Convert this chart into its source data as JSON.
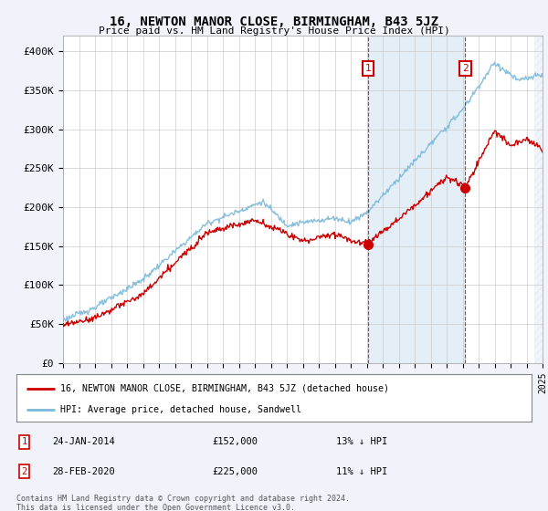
{
  "title": "16, NEWTON MANOR CLOSE, BIRMINGHAM, B43 5JZ",
  "subtitle": "Price paid vs. HM Land Registry's House Price Index (HPI)",
  "ylabel_ticks": [
    "£0",
    "£50K",
    "£100K",
    "£150K",
    "£200K",
    "£250K",
    "£300K",
    "£350K",
    "£400K"
  ],
  "ytick_values": [
    0,
    50000,
    100000,
    150000,
    200000,
    250000,
    300000,
    350000,
    400000
  ],
  "ylim": [
    0,
    420000
  ],
  "xlim_start": 1995.0,
  "xlim_end": 2025.0,
  "hpi_color": "#7ab8d9",
  "property_color": "#cc0000",
  "marker1_x": 2014.07,
  "marker1_y": 152000,
  "marker2_x": 2020.17,
  "marker2_y": 225000,
  "marker1_label": "24-JAN-2014",
  "marker1_price": "£152,000",
  "marker1_note": "13% ↓ HPI",
  "marker2_label": "28-FEB-2020",
  "marker2_price": "£225,000",
  "marker2_note": "11% ↓ HPI",
  "legend_line1": "16, NEWTON MANOR CLOSE, BIRMINGHAM, B43 5JZ (detached house)",
  "legend_line2": "HPI: Average price, detached house, Sandwell",
  "footer": "Contains HM Land Registry data © Crown copyright and database right 2024.\nThis data is licensed under the Open Government Licence v3.0.",
  "background_color": "#f0f4fa",
  "plot_bg_color": "#ffffff",
  "grid_color": "#cccccc",
  "shaded_region_start": 2014.07,
  "shaded_region_end": 2020.17,
  "hatch_region_start": 2024.5,
  "hatch_region_end": 2025.5
}
